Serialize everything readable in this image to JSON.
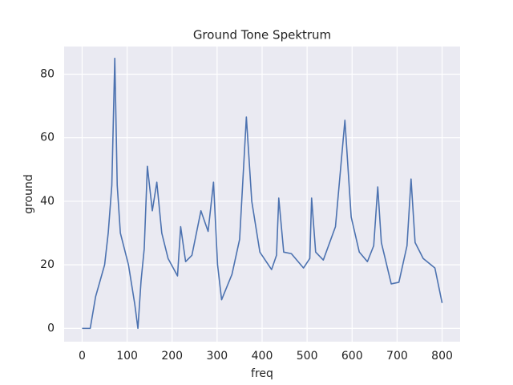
{
  "chart_data": {
    "type": "line",
    "title": "Ground Tone Spektrum",
    "x_label": "freq",
    "y_label": "ground",
    "series": [
      {
        "name": "ground",
        "color": "#4c72b0",
        "x": [
          0,
          18,
          30,
          50,
          58,
          66,
          72.6,
          78,
          85,
          103,
          117,
          124,
          131,
          138,
          145,
          156,
          166,
          177,
          191,
          212,
          219,
          230,
          244,
          264,
          280,
          292,
          301,
          310,
          333,
          350,
          365,
          377,
          395,
          421,
          432,
          437,
          448,
          465,
          492,
          506,
          510,
          519,
          536,
          563,
          584,
          598,
          616,
          634,
          648,
          657,
          665,
          687,
          704,
          722,
          731,
          740,
          758,
          784,
          800
        ],
        "values": [
          0,
          0,
          10,
          20,
          30,
          45,
          85,
          45,
          30,
          20,
          7.6,
          0,
          15,
          25,
          51,
          37,
          46,
          30,
          22,
          16.5,
          32,
          21,
          23,
          37,
          30.5,
          46,
          20,
          9,
          17,
          28,
          66.5,
          40,
          24,
          18.5,
          23,
          41,
          24,
          23.5,
          19,
          22,
          41,
          24,
          21.5,
          32,
          65.5,
          35,
          24,
          21,
          26,
          44.5,
          27,
          14,
          14.5,
          26,
          47,
          27,
          22,
          19,
          8
        ]
      }
    ],
    "xlim": [
      -40,
      840
    ],
    "ylim": [
      -4.2,
      88.7
    ],
    "xticks": [
      0,
      100,
      200,
      300,
      400,
      500,
      600,
      700,
      800
    ],
    "yticks": [
      0,
      20,
      40,
      60,
      80
    ],
    "grid": true
  }
}
